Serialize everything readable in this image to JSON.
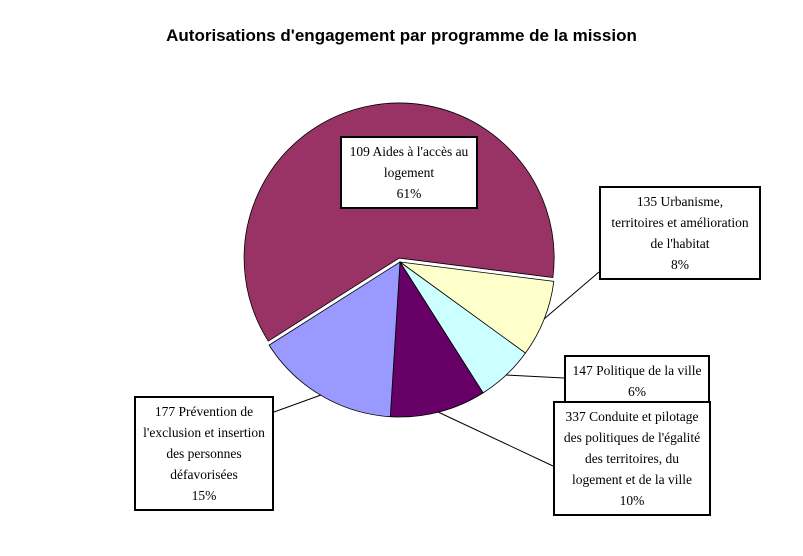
{
  "chart_data": {
    "type": "pie",
    "title": "Autorisations d'engagement par programme de la mission",
    "start_angle": 237.6,
    "legend": "none",
    "slices": [
      {
        "label": "109 Aides à l'accès au logement",
        "label_lines": [
          "109 Aides à l'accès au",
          "logement"
        ],
        "pct": 61,
        "pct_label": "61%",
        "color": "#993366",
        "exploded": true
      },
      {
        "label": "135 Urbanisme, territoires et amélioration de l'habitat",
        "label_lines": [
          "135 Urbanisme,",
          "territoires et amélioration",
          "de l'habitat"
        ],
        "pct": 8,
        "pct_label": "8%",
        "color": "#FFFFCC",
        "exploded": false
      },
      {
        "label": "147 Politique de la ville",
        "label_lines": [
          "147 Politique de la ville"
        ],
        "pct": 6,
        "pct_label": "6%",
        "color": "#CCFFFF",
        "exploded": false
      },
      {
        "label": "337 Conduite et pilotage des politiques de l'égalité des territoires, du logement et de la ville",
        "label_lines": [
          "337 Conduite et pilotage",
          "des politiques de l'égalité",
          "des territoires, du",
          "logement et de la ville"
        ],
        "pct": 10,
        "pct_label": "10%",
        "color": "#660066",
        "exploded": false
      },
      {
        "label": "177 Prévention de l'exclusion et insertion des personnes défavorisées",
        "label_lines": [
          "177 Prévention de",
          "l'exclusion et insertion",
          "des personnes",
          "défavorisées"
        ],
        "pct": 15,
        "pct_label": "15%",
        "color": "#9999FF",
        "exploded": false
      }
    ]
  }
}
